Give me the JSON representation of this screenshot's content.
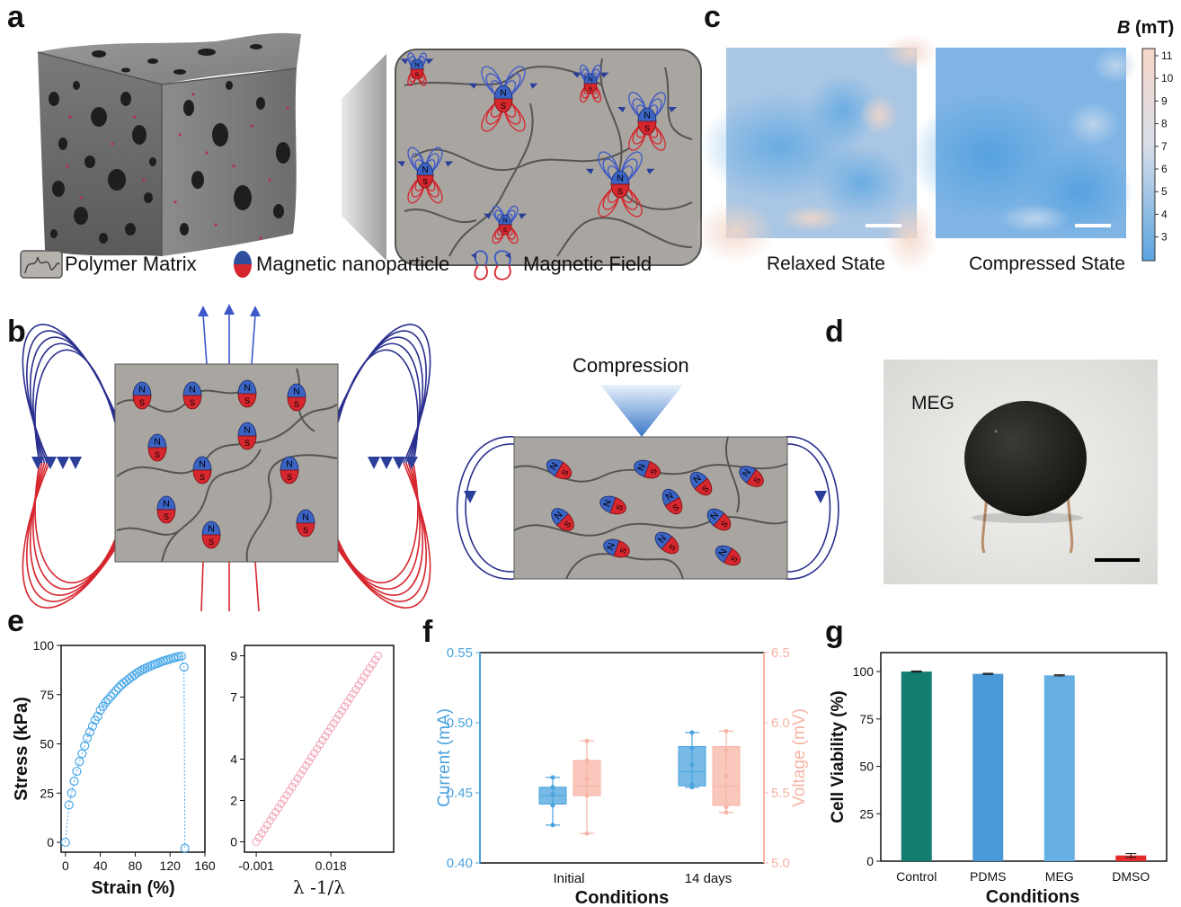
{
  "panels": {
    "a": "a",
    "b": "b",
    "c": "c",
    "d": "d",
    "e": "e",
    "f": "f",
    "g": "g"
  },
  "legend": {
    "polymer": "Polymer Matrix",
    "nanoparticle": "Magnetic nanoparticle",
    "field": "Magnetic Field"
  },
  "magnet_letters": {
    "north": "N",
    "south": "S"
  },
  "panel_b": {
    "compression": "Compression"
  },
  "panel_c": {
    "colorbar_symbol": "B",
    "colorbar_unit": "(mT)",
    "colorbar_ticks": [
      "11",
      "10",
      "9",
      "8",
      "7",
      "6",
      "5",
      "4",
      "3"
    ],
    "relaxed": "Relaxed State",
    "compressed": "Compressed State"
  },
  "panel_d": {
    "label": "MEG"
  },
  "chart_data": [
    {
      "panel": "e-left",
      "type": "scatter",
      "xlabel": "Strain (%)",
      "ylabel": "Stress (kPa)",
      "xlim": [
        -5,
        160
      ],
      "ylim": [
        -5,
        100
      ],
      "xticks": [
        "0",
        "40",
        "80",
        "120",
        "160"
      ],
      "yticks": [
        "0",
        "25",
        "50",
        "75",
        "100"
      ],
      "color": "#4aa8e8",
      "loading": {
        "x": [
          0,
          4,
          7,
          10,
          13,
          16,
          19,
          22,
          25,
          28,
          31,
          34,
          37,
          40,
          43,
          46,
          49,
          52,
          55,
          58,
          61,
          64,
          67,
          70,
          73,
          76,
          79,
          82,
          85,
          88,
          91,
          94,
          97,
          100,
          103,
          106,
          109,
          112,
          115,
          118,
          121,
          124,
          127,
          130,
          133
        ],
        "y": [
          0,
          19,
          25,
          31,
          36,
          41,
          45,
          49,
          53,
          56,
          59,
          62,
          64,
          67,
          69,
          71,
          72.5,
          74,
          75.5,
          77,
          78.5,
          79.8,
          81,
          82,
          83,
          84,
          85,
          86,
          86.8,
          87.5,
          88.2,
          88.8,
          89.4,
          90,
          90.5,
          91,
          91.5,
          92,
          92.4,
          92.8,
          93.2,
          93.6,
          94,
          94.3,
          94.5
        ]
      },
      "unloading": {
        "x": [
          136,
          137
        ],
        "y": [
          89,
          -3
        ]
      }
    },
    {
      "panel": "e-right",
      "type": "scatter",
      "xlabel": "λ -1/λ",
      "ylabel": "",
      "xlim": [
        -0.004,
        0.034
      ],
      "ylim": [
        -0.5,
        9.5
      ],
      "xticks": [
        "-0.001",
        "0.018"
      ],
      "yticks": [
        "0",
        "2",
        "4",
        "7",
        "9"
      ],
      "color": "#f0a0b4",
      "x_range": [
        -0.001,
        0.03
      ],
      "y_range": [
        0,
        9
      ],
      "n_points": 45
    },
    {
      "panel": "f",
      "type": "box",
      "xlabel": "Conditions",
      "ylabel_left": "Current (mA)",
      "ylabel_right": "Voltage (mV)",
      "categories": [
        "Initial",
        "14 days"
      ],
      "left_ylim": [
        0.4,
        0.55
      ],
      "right_ylim": [
        5.0,
        6.5
      ],
      "left_yticks": [
        "0.40",
        "0.45",
        "0.50",
        "0.55"
      ],
      "right_yticks": [
        "5.0",
        "5.5",
        "6.0",
        "6.5"
      ],
      "series": [
        {
          "axis": "left",
          "color": "#4aa3de",
          "boxes": [
            {
              "min": 0.427,
              "q1": 0.442,
              "median": 0.448,
              "q3": 0.454,
              "max": 0.461,
              "points": [
                0.427,
                0.441,
                0.449,
                0.454,
                0.461
              ]
            },
            {
              "min": 0.454,
              "q1": 0.455,
              "median": 0.465,
              "q3": 0.483,
              "max": 0.493,
              "points": [
                0.454,
                0.456,
                0.47,
                0.482,
                0.493
              ]
            }
          ]
        },
        {
          "axis": "right",
          "color": "#f7b4a6",
          "boxes": [
            {
              "min": 5.21,
              "q1": 5.48,
              "median": 5.55,
              "q3": 5.73,
              "max": 5.87,
              "points": [
                5.21,
                5.48,
                5.6,
                5.73,
                5.87
              ]
            },
            {
              "min": 5.36,
              "q1": 5.41,
              "median": 5.55,
              "q3": 5.83,
              "max": 5.94,
              "points": [
                5.36,
                5.4,
                5.62,
                5.8,
                5.94
              ]
            }
          ]
        }
      ]
    },
    {
      "panel": "g",
      "type": "bar",
      "xlabel": "Conditions",
      "ylabel": "Cell Viability (%)",
      "ylim": [
        0,
        110
      ],
      "yticks": [
        "0",
        "25",
        "50",
        "75",
        "100"
      ],
      "categories": [
        "Control",
        "PDMS",
        "MEG",
        "DMSO"
      ],
      "values": [
        100,
        98.8,
        98,
        3
      ],
      "errors": [
        0.3,
        0.3,
        0.3,
        1
      ],
      "colors": [
        "#147d72",
        "#4a98d8",
        "#66afe3",
        "#e32b2b"
      ]
    }
  ]
}
